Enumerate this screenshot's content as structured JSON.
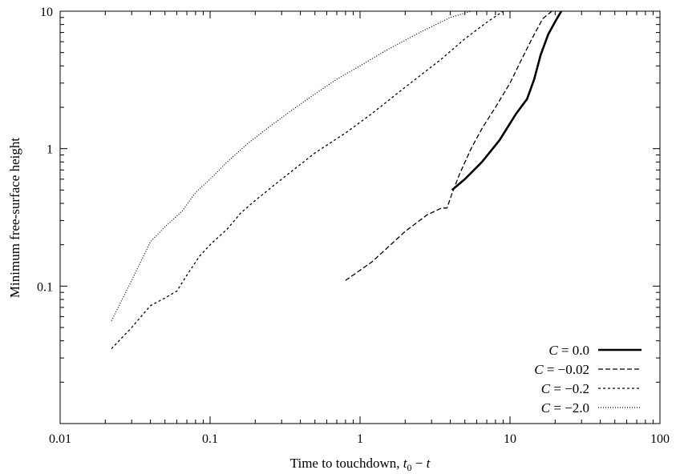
{
  "chart_data": {
    "type": "line",
    "title": "",
    "xlabel": "Time to touchdown, t₀ − t",
    "xlabel_parts": {
      "prefix": "Time to touchdown, ",
      "var1": "t",
      "sub": "0",
      "rest": " − ",
      "var2": "t"
    },
    "ylabel": "Minimum free-surface height",
    "xscale": "log",
    "yscale": "log",
    "xlim": [
      0.01,
      100
    ],
    "ylim": [
      0.01,
      10
    ],
    "xticks": [
      {
        "value": 0.01,
        "label": "0.01"
      },
      {
        "value": 0.1,
        "label": "0.1"
      },
      {
        "value": 1,
        "label": "1"
      },
      {
        "value": 10,
        "label": "10"
      },
      {
        "value": 100,
        "label": "100"
      }
    ],
    "yticks": [
      {
        "value": 0.1,
        "label": "0.1"
      },
      {
        "value": 1,
        "label": "1"
      },
      {
        "value": 10,
        "label": "10"
      }
    ],
    "grid": false,
    "legend_position": "bottom-right",
    "series": [
      {
        "name": "C = 0.0",
        "name_var": "C",
        "name_value": " = 0.0",
        "color": "#000000",
        "style": "solid-thick",
        "x": [
          4.1,
          5.0,
          6.5,
          8.5,
          11.0,
          13.0,
          14.5,
          16.0,
          18.0,
          20.5,
          22.0
        ],
        "y": [
          0.5,
          0.6,
          0.8,
          1.15,
          1.8,
          2.3,
          3.2,
          4.8,
          6.8,
          8.8,
          10.0
        ]
      },
      {
        "name": "C = −0.02",
        "name_var": "C",
        "name_value": " = −0.02",
        "color": "#000000",
        "style": "dashed",
        "x": [
          0.8,
          1.2,
          2.0,
          2.8,
          3.5,
          3.8,
          4.1,
          4.6,
          5.5,
          6.5,
          8.0,
          10.0,
          12.0,
          14.0,
          16.5,
          19.0
        ],
        "y": [
          0.11,
          0.15,
          0.25,
          0.33,
          0.37,
          0.37,
          0.47,
          0.65,
          1.0,
          1.4,
          2.0,
          3.0,
          4.5,
          6.3,
          8.8,
          10.0
        ]
      },
      {
        "name": "C = −0.2",
        "name_var": "C",
        "name_value": " = −0.2",
        "color": "#000000",
        "style": "short-dashed",
        "x": [
          0.022,
          0.03,
          0.04,
          0.05,
          0.06,
          0.07,
          0.085,
          0.1,
          0.13,
          0.16,
          0.2,
          0.3,
          0.5,
          0.8,
          1.2,
          2.0,
          3.5,
          5.0,
          7.0,
          9.0
        ],
        "y": [
          0.035,
          0.05,
          0.072,
          0.082,
          0.092,
          0.12,
          0.165,
          0.2,
          0.26,
          0.34,
          0.42,
          0.6,
          0.93,
          1.3,
          1.8,
          2.8,
          4.5,
          6.3,
          8.3,
          10.0
        ]
      },
      {
        "name": "C = −2.0",
        "name_var": "C",
        "name_value": " = −2.0",
        "color": "#000000",
        "style": "dotted",
        "x": [
          0.022,
          0.03,
          0.04,
          0.05,
          0.065,
          0.08,
          0.1,
          0.13,
          0.18,
          0.25,
          0.35,
          0.5,
          0.7,
          1.0,
          1.5,
          2.5,
          4.0,
          5.5
        ],
        "y": [
          0.056,
          0.11,
          0.21,
          0.27,
          0.35,
          0.48,
          0.6,
          0.8,
          1.1,
          1.45,
          1.9,
          2.5,
          3.2,
          4.0,
          5.2,
          7.0,
          9.0,
          10.0
        ]
      }
    ]
  }
}
